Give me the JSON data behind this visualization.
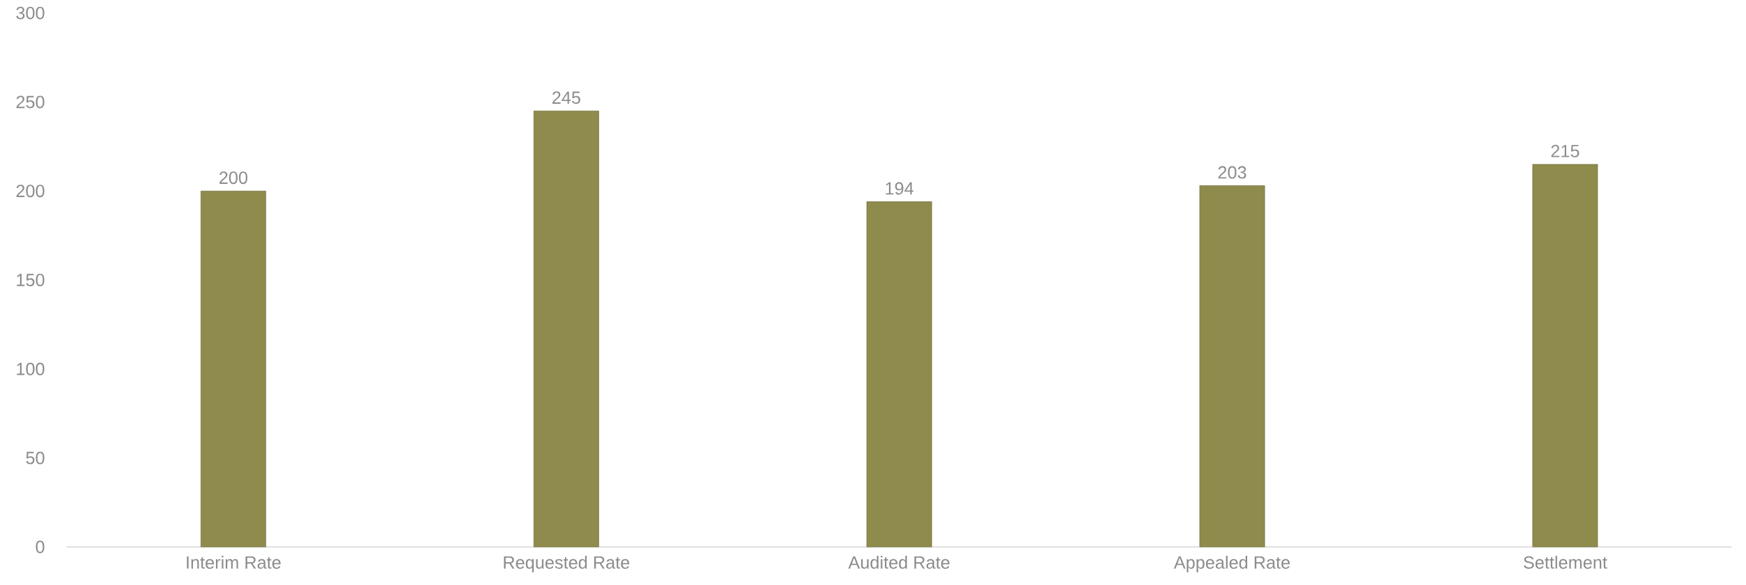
{
  "chart_data": {
    "type": "bar",
    "categories": [
      "Interim Rate",
      "Requested Rate",
      "Audited Rate",
      "Appealed Rate",
      "Settlement"
    ],
    "values": [
      200,
      245,
      194,
      203,
      215
    ],
    "color": "#8f8b4c",
    "ylim": [
      0,
      300
    ],
    "yticks": [
      0,
      50,
      100,
      150,
      200,
      250,
      300
    ],
    "grid": false,
    "data_labels": true
  }
}
